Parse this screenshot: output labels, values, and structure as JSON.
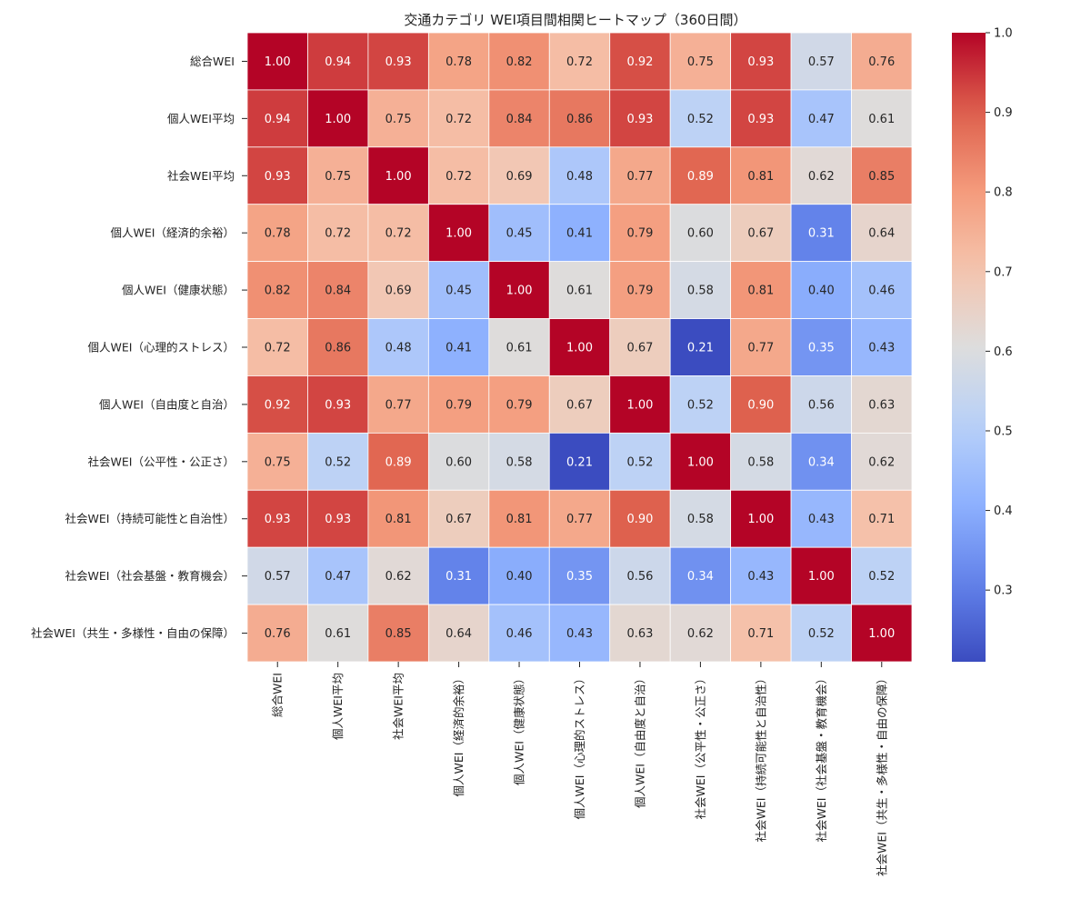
{
  "chart_data": {
    "type": "heatmap",
    "title": "交通カテゴリ WEI項目間相関ヒートマップ（360日間）",
    "labels": [
      "総合WEI",
      "個人WEI平均",
      "社会WEI平均",
      "個人WEI（経済的余裕）",
      "個人WEI（健康状態）",
      "個人WEI（心理的ストレス）",
      "個人WEI（自由度と自治）",
      "社会WEI（公平性・公正さ）",
      "社会WEI（持続可能性と自治性）",
      "社会WEI（社会基盤・教育機会）",
      "社会WEI（共生・多様性・自由の保障）"
    ],
    "matrix": [
      [
        1.0,
        0.94,
        0.93,
        0.78,
        0.82,
        0.72,
        0.92,
        0.75,
        0.93,
        0.57,
        0.76
      ],
      [
        0.94,
        1.0,
        0.75,
        0.72,
        0.84,
        0.86,
        0.93,
        0.52,
        0.93,
        0.47,
        0.61
      ],
      [
        0.93,
        0.75,
        1.0,
        0.72,
        0.69,
        0.48,
        0.77,
        0.89,
        0.81,
        0.62,
        0.85
      ],
      [
        0.78,
        0.72,
        0.72,
        1.0,
        0.45,
        0.41,
        0.79,
        0.6,
        0.67,
        0.31,
        0.64
      ],
      [
        0.82,
        0.84,
        0.69,
        0.45,
        1.0,
        0.61,
        0.79,
        0.58,
        0.81,
        0.4,
        0.46
      ],
      [
        0.72,
        0.86,
        0.48,
        0.41,
        0.61,
        1.0,
        0.67,
        0.21,
        0.77,
        0.35,
        0.43
      ],
      [
        0.92,
        0.93,
        0.77,
        0.79,
        0.79,
        0.67,
        1.0,
        0.52,
        0.9,
        0.56,
        0.63
      ],
      [
        0.75,
        0.52,
        0.89,
        0.6,
        0.58,
        0.21,
        0.52,
        1.0,
        0.58,
        0.34,
        0.62
      ],
      [
        0.93,
        0.93,
        0.81,
        0.67,
        0.81,
        0.77,
        0.9,
        0.58,
        1.0,
        0.43,
        0.71
      ],
      [
        0.57,
        0.47,
        0.62,
        0.31,
        0.4,
        0.35,
        0.56,
        0.34,
        0.43,
        1.0,
        0.52
      ],
      [
        0.76,
        0.61,
        0.85,
        0.64,
        0.46,
        0.43,
        0.63,
        0.62,
        0.71,
        0.52,
        1.0
      ]
    ],
    "colormap": "coolwarm",
    "vmin": 0.21,
    "vmax": 1.0,
    "colorbar_ticks": [
      0.3,
      0.4,
      0.5,
      0.6,
      0.7,
      0.8,
      0.9,
      1.0
    ],
    "colorbar_tick_labels": [
      "0.3",
      "0.4",
      "0.5",
      "0.6",
      "0.7",
      "0.8",
      "0.9",
      "1.0"
    ]
  }
}
